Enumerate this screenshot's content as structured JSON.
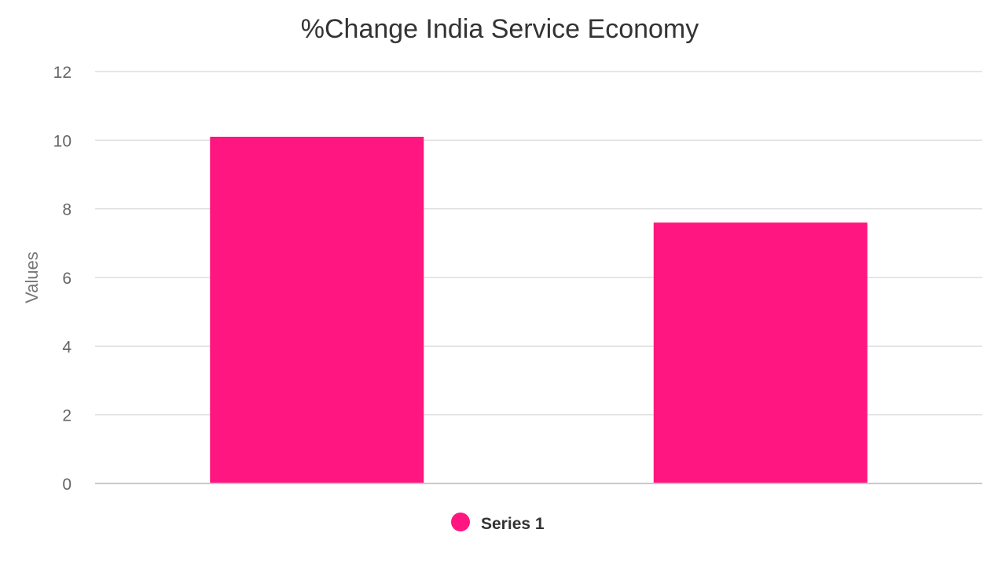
{
  "chart_data": {
    "type": "bar",
    "title": "%Change India Service Economy",
    "xlabel": "",
    "ylabel": "Values",
    "categories": [
      "",
      ""
    ],
    "series": [
      {
        "name": "Series 1",
        "values": [
          10.1,
          7.6
        ],
        "color": "#ff1680"
      }
    ],
    "ylim": [
      0,
      12
    ],
    "yticks": [
      0,
      2,
      4,
      6,
      8,
      10,
      12
    ],
    "yticks_text": [
      "0",
      "2",
      "4",
      "6",
      "8",
      "10",
      "12"
    ],
    "grid": true,
    "legend": "bottom-center"
  }
}
